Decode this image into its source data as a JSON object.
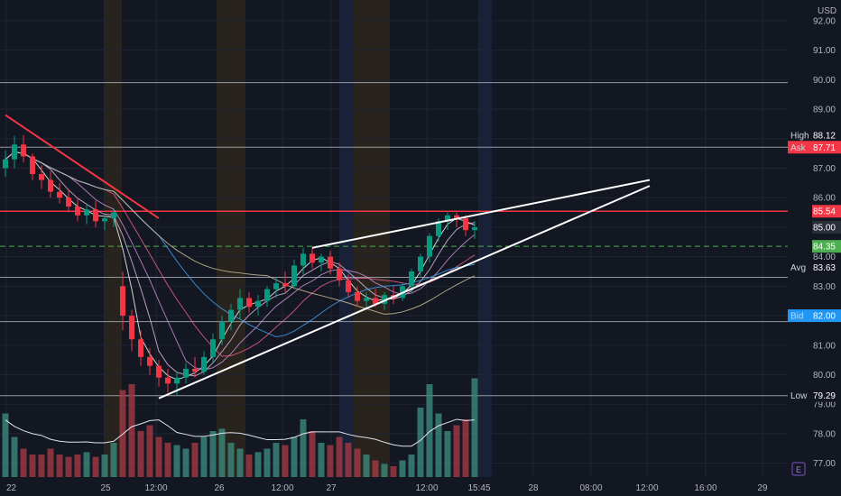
{
  "currency": "USD",
  "badge": "E",
  "colors": {
    "background": "#131722",
    "up": "#089981",
    "down": "#f23645",
    "vol_up": "#3b8a7d",
    "vol_down": "#a23a45",
    "resistance": "#f23645",
    "support_dash": "#4caf50",
    "bid": "#2196f3",
    "ask": "#f23645"
  },
  "chart_data": {
    "type": "candlestick",
    "x_labels": [
      "22",
      "25",
      "12:00",
      "26",
      "12:00",
      "27",
      "12:00",
      "15:45",
      "28",
      "08:00",
      "12:00",
      "16:00",
      "29"
    ],
    "y_ticks": [
      "92.00",
      "91.00",
      "90.00",
      "89.00",
      "88.00",
      "87.00",
      "86.00",
      "85.00",
      "84.00",
      "83.00",
      "82.00",
      "81.00",
      "80.00",
      "79.00",
      "78.00",
      "77.00"
    ],
    "ylim": [
      76.5,
      92.7
    ],
    "grid": true,
    "price_tags": [
      {
        "name": "High",
        "value": "88.12",
        "price": 88.12,
        "kind": "label"
      },
      {
        "name": "Ask",
        "value": "87.71",
        "price": 87.71,
        "kind": "ask"
      },
      {
        "name": "",
        "value": "85.54",
        "price": 85.54,
        "kind": "resistance"
      },
      {
        "name": "",
        "value": "85.00",
        "price": 85.0,
        "kind": "last"
      },
      {
        "name": "",
        "value": "84.35",
        "price": 84.35,
        "kind": "support"
      },
      {
        "name": "Avg",
        "value": "83.63",
        "price": 83.63,
        "kind": "label"
      },
      {
        "name": "Bid",
        "value": "82.00",
        "price": 82.0,
        "kind": "bid"
      },
      {
        "name": "Low",
        "value": "79.29",
        "price": 79.29,
        "kind": "label"
      }
    ],
    "horizontal_levels": [
      89.9,
      87.71,
      85.54,
      84.35,
      83.3,
      81.8,
      79.29
    ],
    "candles": [
      [
        87.0,
        87.6,
        86.7,
        87.3
      ],
      [
        87.3,
        88.1,
        87.0,
        87.8
      ],
      [
        87.8,
        88.12,
        87.2,
        87.4
      ],
      [
        87.4,
        87.5,
        86.6,
        86.8
      ],
      [
        86.8,
        87.1,
        86.3,
        86.6
      ],
      [
        86.6,
        86.9,
        86.0,
        86.2
      ],
      [
        86.2,
        86.5,
        85.8,
        86.0
      ],
      [
        86.0,
        86.3,
        85.5,
        85.7
      ],
      [
        85.7,
        86.0,
        85.2,
        85.4
      ],
      [
        85.4,
        85.8,
        85.1,
        85.6
      ],
      [
        85.6,
        85.9,
        85.0,
        85.2
      ],
      [
        85.2,
        85.4,
        84.9,
        85.3
      ],
      [
        85.3,
        85.6,
        85.0,
        85.5
      ],
      [
        83.0,
        83.5,
        81.5,
        82.0
      ],
      [
        82.0,
        82.2,
        80.8,
        81.2
      ],
      [
        81.2,
        81.5,
        80.3,
        80.6
      ],
      [
        80.6,
        80.9,
        80.0,
        80.3
      ],
      [
        80.3,
        80.5,
        79.6,
        79.9
      ],
      [
        79.9,
        80.2,
        79.4,
        79.7
      ],
      [
        79.7,
        80.1,
        79.29,
        79.9
      ],
      [
        79.9,
        80.4,
        79.7,
        80.2
      ],
      [
        80.2,
        80.6,
        79.9,
        80.1
      ],
      [
        80.1,
        80.8,
        80.0,
        80.6
      ],
      [
        80.6,
        81.4,
        80.4,
        81.2
      ],
      [
        81.2,
        82.0,
        81.0,
        81.8
      ],
      [
        81.8,
        82.4,
        81.5,
        82.2
      ],
      [
        82.2,
        82.9,
        81.9,
        82.6
      ],
      [
        82.6,
        82.8,
        82.1,
        82.3
      ],
      [
        82.3,
        82.7,
        82.0,
        82.5
      ],
      [
        82.5,
        83.0,
        82.3,
        82.9
      ],
      [
        82.9,
        83.3,
        82.6,
        83.1
      ],
      [
        83.1,
        83.5,
        82.8,
        83.0
      ],
      [
        83.0,
        83.9,
        82.9,
        83.7
      ],
      [
        83.7,
        84.3,
        83.4,
        84.1
      ],
      [
        84.1,
        84.3,
        83.6,
        83.8
      ],
      [
        83.8,
        84.1,
        83.5,
        84.0
      ],
      [
        84.0,
        84.2,
        83.4,
        83.6
      ],
      [
        83.6,
        83.8,
        83.0,
        83.2
      ],
      [
        83.2,
        83.4,
        82.6,
        82.8
      ],
      [
        82.8,
        83.0,
        82.3,
        82.5
      ],
      [
        82.5,
        82.8,
        82.2,
        82.6
      ],
      [
        82.6,
        82.9,
        82.3,
        82.4
      ],
      [
        82.4,
        82.8,
        82.2,
        82.7
      ],
      [
        82.7,
        83.0,
        82.4,
        82.6
      ],
      [
        82.6,
        83.1,
        82.5,
        83.0
      ],
      [
        83.0,
        83.6,
        82.8,
        83.5
      ],
      [
        83.5,
        84.1,
        83.3,
        84.0
      ],
      [
        84.0,
        84.8,
        83.8,
        84.7
      ],
      [
        84.7,
        85.3,
        84.5,
        85.2
      ],
      [
        85.2,
        85.5,
        84.9,
        85.4
      ],
      [
        85.4,
        85.5,
        85.0,
        85.3
      ],
      [
        85.3,
        85.4,
        84.7,
        84.9
      ],
      [
        84.9,
        85.2,
        84.6,
        85.0
      ]
    ],
    "volume": [
      0.55,
      0.35,
      0.25,
      0.2,
      0.2,
      0.25,
      0.2,
      0.18,
      0.2,
      0.22,
      0.18,
      0.2,
      0.3,
      0.75,
      0.8,
      0.4,
      0.45,
      0.35,
      0.3,
      0.28,
      0.25,
      0.3,
      0.35,
      0.4,
      0.42,
      0.3,
      0.25,
      0.2,
      0.22,
      0.25,
      0.3,
      0.28,
      0.35,
      0.5,
      0.4,
      0.3,
      0.28,
      0.35,
      0.3,
      0.25,
      0.2,
      0.15,
      0.12,
      0.1,
      0.15,
      0.2,
      0.6,
      0.8,
      0.55,
      0.4,
      0.45,
      0.5,
      0.85
    ],
    "trendlines": [
      {
        "from": [
          0,
          88.8
        ],
        "to": [
          17,
          85.3
        ],
        "color": "resistance"
      },
      {
        "from": [
          17,
          79.2
        ],
        "to": [
          82,
          86.4
        ],
        "color": "white"
      },
      {
        "from": [
          34,
          84.3
        ],
        "to": [
          82,
          86.6
        ],
        "color": "white"
      }
    ]
  }
}
